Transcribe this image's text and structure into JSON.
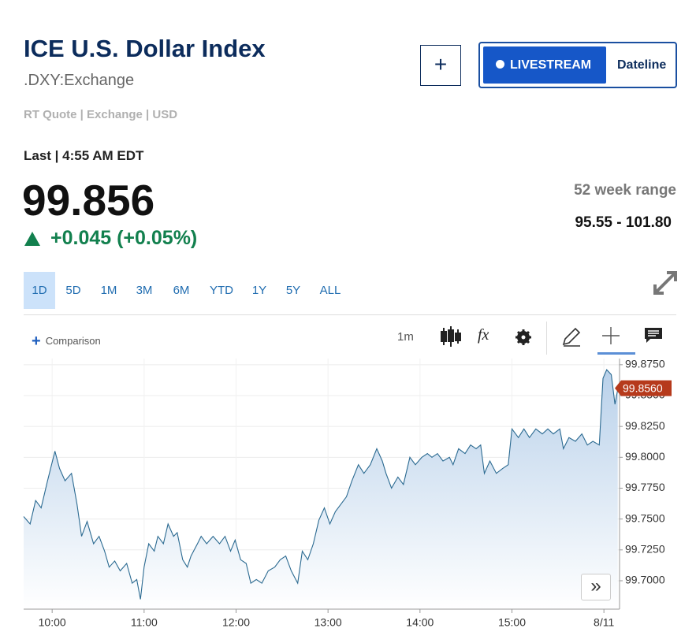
{
  "header": {
    "title": "ICE U.S. Dollar Index",
    "symbol": ".DXY:Exchange",
    "quote_info": "RT Quote | Exchange | USD",
    "buttons": {
      "livestream": "LIVESTREAM",
      "dateline": "Dateline"
    }
  },
  "quote": {
    "last_time": "Last | 4:55 AM EDT",
    "price": "99.856",
    "change": "+0.045 (+0.05%)",
    "range_label": "52 week range",
    "range": "95.55 - 101.80"
  },
  "tabs": [
    "1D",
    "5D",
    "1M",
    "3M",
    "6M",
    "YTD",
    "1Y",
    "5Y",
    "ALL"
  ],
  "toolbar": {
    "comparison": "Comparison",
    "interval": "1m",
    "indicators": "fx"
  },
  "chart_data": {
    "type": "area",
    "color": "#2b6a91",
    "x": [
      9.69,
      9.76,
      9.82,
      9.88,
      9.95,
      10.03,
      10.08,
      10.14,
      10.21,
      10.27,
      10.32,
      10.38,
      10.45,
      10.51,
      10.57,
      10.62,
      10.68,
      10.74,
      10.81,
      10.87,
      10.92,
      10.96,
      11.0,
      11.05,
      11.11,
      11.15,
      11.21,
      11.26,
      11.32,
      11.36,
      11.42,
      11.47,
      11.51,
      11.58,
      11.62,
      11.68,
      11.75,
      11.82,
      11.88,
      11.94,
      11.99,
      12.05,
      12.11,
      12.16,
      12.22,
      12.28,
      12.35,
      12.42,
      12.48,
      12.54,
      12.6,
      12.67,
      12.72,
      12.78,
      12.84,
      12.9,
      12.96,
      13.02,
      13.08,
      13.14,
      13.2,
      13.26,
      13.33,
      13.39,
      13.46,
      13.53,
      13.59,
      13.63,
      13.69,
      13.76,
      13.82,
      13.89,
      13.95,
      14.02,
      14.08,
      14.13,
      14.19,
      14.25,
      14.32,
      14.36,
      14.42,
      14.49,
      14.55,
      14.61,
      14.66,
      14.7,
      14.76,
      14.83,
      14.9,
      14.96,
      15.0,
      15.07,
      15.13,
      15.19,
      15.26,
      15.33,
      15.39,
      15.45,
      15.52,
      15.56,
      15.62,
      15.69,
      15.76,
      15.82,
      15.88,
      15.95,
      15.99,
      16.03,
      16.08,
      16.12,
      16.15
    ],
    "values": [
      99.752,
      99.746,
      99.765,
      99.759,
      99.781,
      99.805,
      99.791,
      99.781,
      99.787,
      99.762,
      99.736,
      99.748,
      99.73,
      99.736,
      99.724,
      99.711,
      99.716,
      99.708,
      99.714,
      99.698,
      99.701,
      99.685,
      99.711,
      99.73,
      99.724,
      99.736,
      99.73,
      99.746,
      99.736,
      99.739,
      99.717,
      99.711,
      99.72,
      99.73,
      99.736,
      99.73,
      99.736,
      99.73,
      99.736,
      99.724,
      99.733,
      99.717,
      99.714,
      99.698,
      99.701,
      99.698,
      99.708,
      99.711,
      99.717,
      99.72,
      99.708,
      99.698,
      99.724,
      99.717,
      99.73,
      99.749,
      99.759,
      99.746,
      99.756,
      99.762,
      99.768,
      99.781,
      99.794,
      99.787,
      99.794,
      99.807,
      99.797,
      99.787,
      99.775,
      99.784,
      99.778,
      99.8,
      99.794,
      99.8,
      99.803,
      99.8,
      99.803,
      99.797,
      99.8,
      99.794,
      99.807,
      99.803,
      99.81,
      99.807,
      99.81,
      99.787,
      99.797,
      99.787,
      99.791,
      99.794,
      99.823,
      99.816,
      99.823,
      99.816,
      99.823,
      99.819,
      99.823,
      99.819,
      99.823,
      99.807,
      99.816,
      99.813,
      99.819,
      99.81,
      99.813,
      99.81,
      99.864,
      99.871,
      99.867,
      99.843,
      99.855
    ],
    "xlim": [
      9.69,
      16.17
    ],
    "ylim": [
      99.677,
      99.88
    ],
    "xticks": [
      {
        "value": 10,
        "label": "10:00"
      },
      {
        "value": 11,
        "label": "11:00"
      },
      {
        "value": 12,
        "label": "12:00"
      },
      {
        "value": 13,
        "label": "13:00"
      },
      {
        "value": 14,
        "label": "14:00"
      },
      {
        "value": 15,
        "label": "15:00"
      },
      {
        "value": 16,
        "label": "8/11"
      }
    ],
    "yticks": [
      {
        "value": 99.7,
        "label": "99.7000"
      },
      {
        "value": 99.725,
        "label": "99.7250"
      },
      {
        "value": 99.75,
        "label": "99.7500"
      },
      {
        "value": 99.775,
        "label": "99.7750"
      },
      {
        "value": 99.8,
        "label": "99.8000"
      },
      {
        "value": 99.825,
        "label": "99.8250"
      },
      {
        "value": 99.85,
        "label": "99.8500"
      },
      {
        "value": 99.875,
        "label": "99.8750"
      }
    ],
    "last_value": {
      "value": 99.856,
      "label": "99.8560"
    },
    "grid": true
  }
}
